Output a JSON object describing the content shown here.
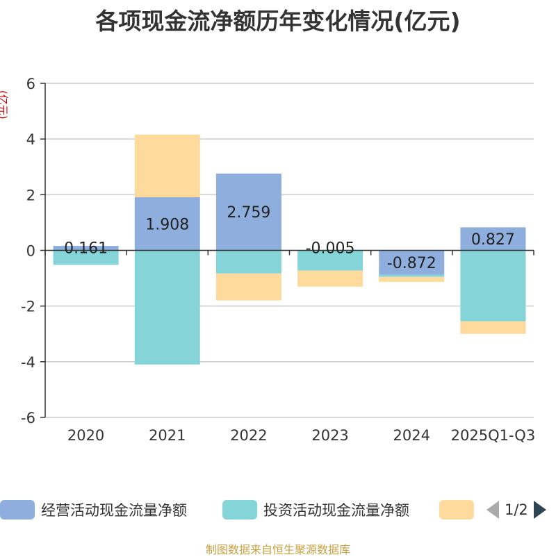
{
  "chart_data": {
    "type": "bar",
    "stacked": true,
    "title": "各项现金流净额历年变化情况(亿元)",
    "ylabel": "(亿元)",
    "xlabel": "",
    "ylim": [
      -6,
      6
    ],
    "yticks": [
      6,
      4,
      2,
      0,
      -2,
      -4,
      -6
    ],
    "categories": [
      "2020",
      "2021",
      "2022",
      "2023",
      "2024",
      "2025Q1-Q3"
    ],
    "grid": true,
    "legend_position": "bottom",
    "series": [
      {
        "name": "经营活动现金流量净额",
        "color": "#8eaedd",
        "values": [
          0.161,
          1.908,
          2.759,
          -0.005,
          -0.872,
          0.827
        ],
        "labels": [
          "0.161",
          "1.908",
          "2.759",
          "-0.005",
          "-0.872",
          "0.827"
        ]
      },
      {
        "name": "投资活动现金流量净额",
        "color": "#85d4d8",
        "values": [
          -0.52,
          -4.1,
          -0.83,
          -0.72,
          -0.08,
          -2.55
        ]
      },
      {
        "name": "",
        "color": "#fedb9c",
        "values": [
          0.0,
          2.25,
          -0.97,
          -0.58,
          -0.18,
          -0.45
        ]
      }
    ]
  },
  "legend": {
    "page": "1/2"
  },
  "source": "制图数据来自恒生聚源数据库"
}
